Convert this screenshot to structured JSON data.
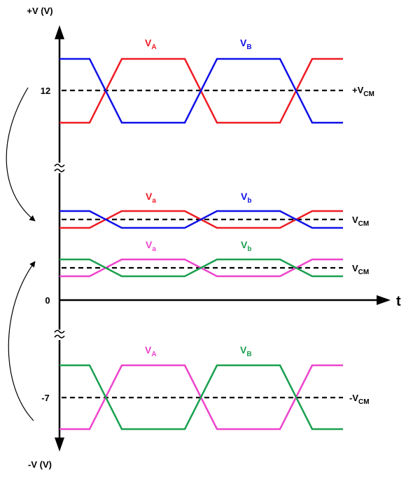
{
  "axes": {
    "y_top_label": "+V (V)",
    "y_bottom_label": "-V (V)",
    "x_label": "t",
    "zero_label": "0",
    "tick_12": "12",
    "tick_neg7": "-7"
  },
  "colors": {
    "red": "#ee1c24",
    "blue": "#1010e8",
    "magenta": "#ee44cc",
    "green": "#1aa050",
    "black": "#000000"
  },
  "group_top": {
    "label_a_main": "V",
    "label_a_sub": "A",
    "label_b_main": "V",
    "label_b_sub": "B",
    "ref_label_main": "+V",
    "ref_label_sub": "CM"
  },
  "group_mid1": {
    "label_a_main": "V",
    "label_a_sub": "a",
    "label_b_main": "V",
    "label_b_sub": "b",
    "ref_label_main": "V",
    "ref_label_sub": "CM"
  },
  "group_mid2": {
    "label_a_main": "V",
    "label_a_sub": "a",
    "label_b_main": "V",
    "label_b_sub": "b",
    "ref_label_main": "V",
    "ref_label_sub": "CM"
  },
  "group_bottom": {
    "label_a_main": "V",
    "label_a_sub": "A",
    "label_b_main": "V",
    "label_b_sub": "B",
    "ref_label_main": "-V",
    "ref_label_sub": "CM"
  }
}
